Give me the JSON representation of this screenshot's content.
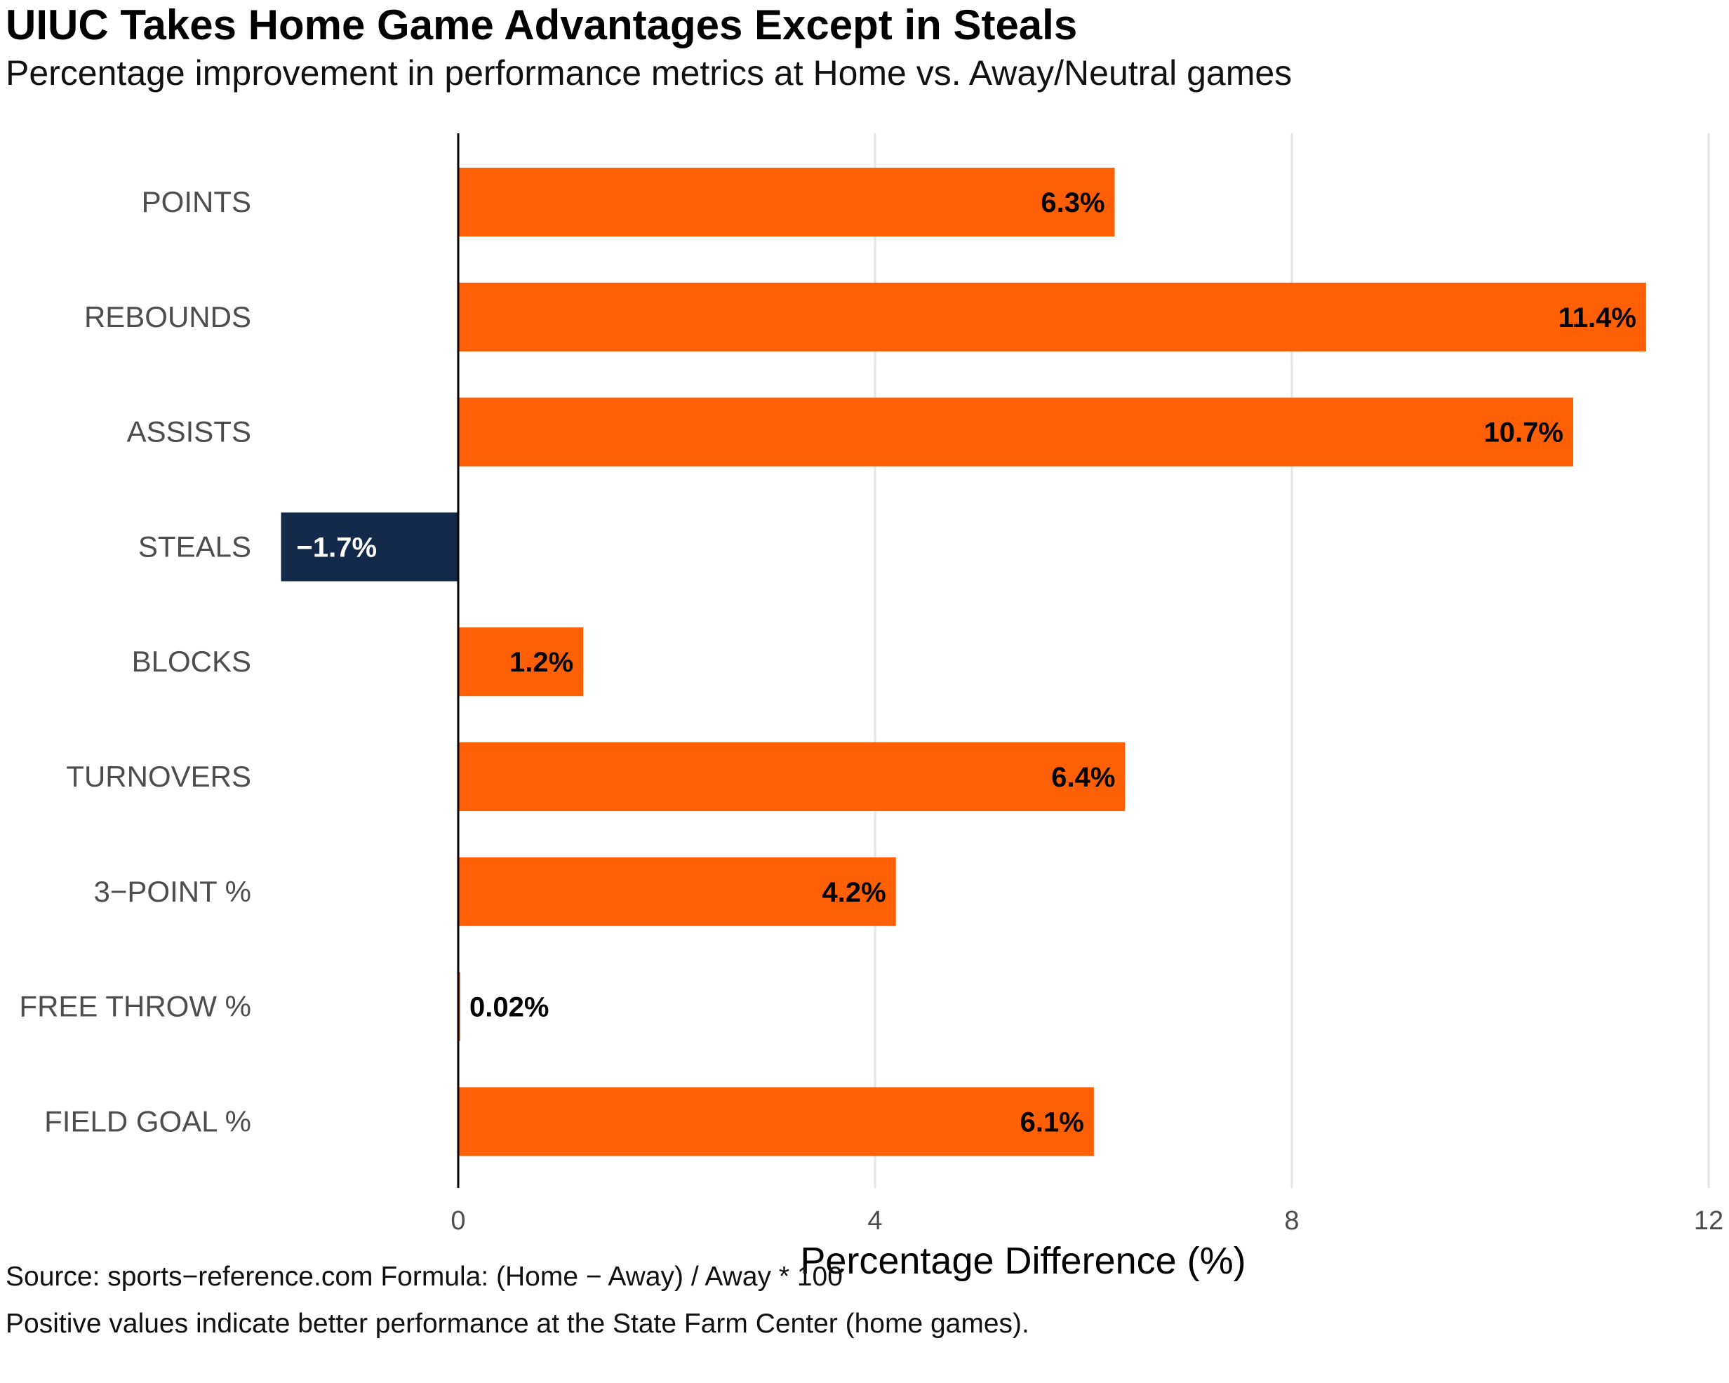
{
  "chart_data": {
    "type": "bar",
    "orientation": "horizontal",
    "title": "UIUC Takes Home Game Advantages Except in Steals",
    "subtitle": "Percentage improvement in performance metrics at Home vs. Away/Neutral games",
    "xlabel": "Percentage Difference (%)",
    "ylabel": "",
    "xlim": [
      -1.7,
      12
    ],
    "x_ticks": [
      "0",
      "4",
      "8",
      "12"
    ],
    "x_tick_values": [
      0,
      4,
      8,
      12
    ],
    "grid": "vertical major gridlines",
    "categories": [
      "POINTS",
      "REBOUNDS",
      "ASSISTS",
      "STEALS",
      "BLOCKS",
      "TURNOVERS",
      "3−POINT %",
      "FREE THROW %",
      "FIELD GOAL %"
    ],
    "values": [
      6.3,
      11.4,
      10.7,
      -1.7,
      1.2,
      6.4,
      4.2,
      0.02,
      6.1
    ],
    "data_labels": [
      "6.3%",
      "11.4%",
      "10.7%",
      "−1.7%",
      "1.2%",
      "6.4%",
      "4.2%",
      "0.02%",
      "6.1%"
    ],
    "colors": {
      "positive": "#FF5F05",
      "negative": "#13294B",
      "grid": "#E5E5E5",
      "axis": "#000000"
    },
    "caption": [
      "Source: sports−reference.com Formula: (Home − Away) / Away * 100",
      "Positive values indicate better performance at the State Farm Center (home games)."
    ]
  }
}
